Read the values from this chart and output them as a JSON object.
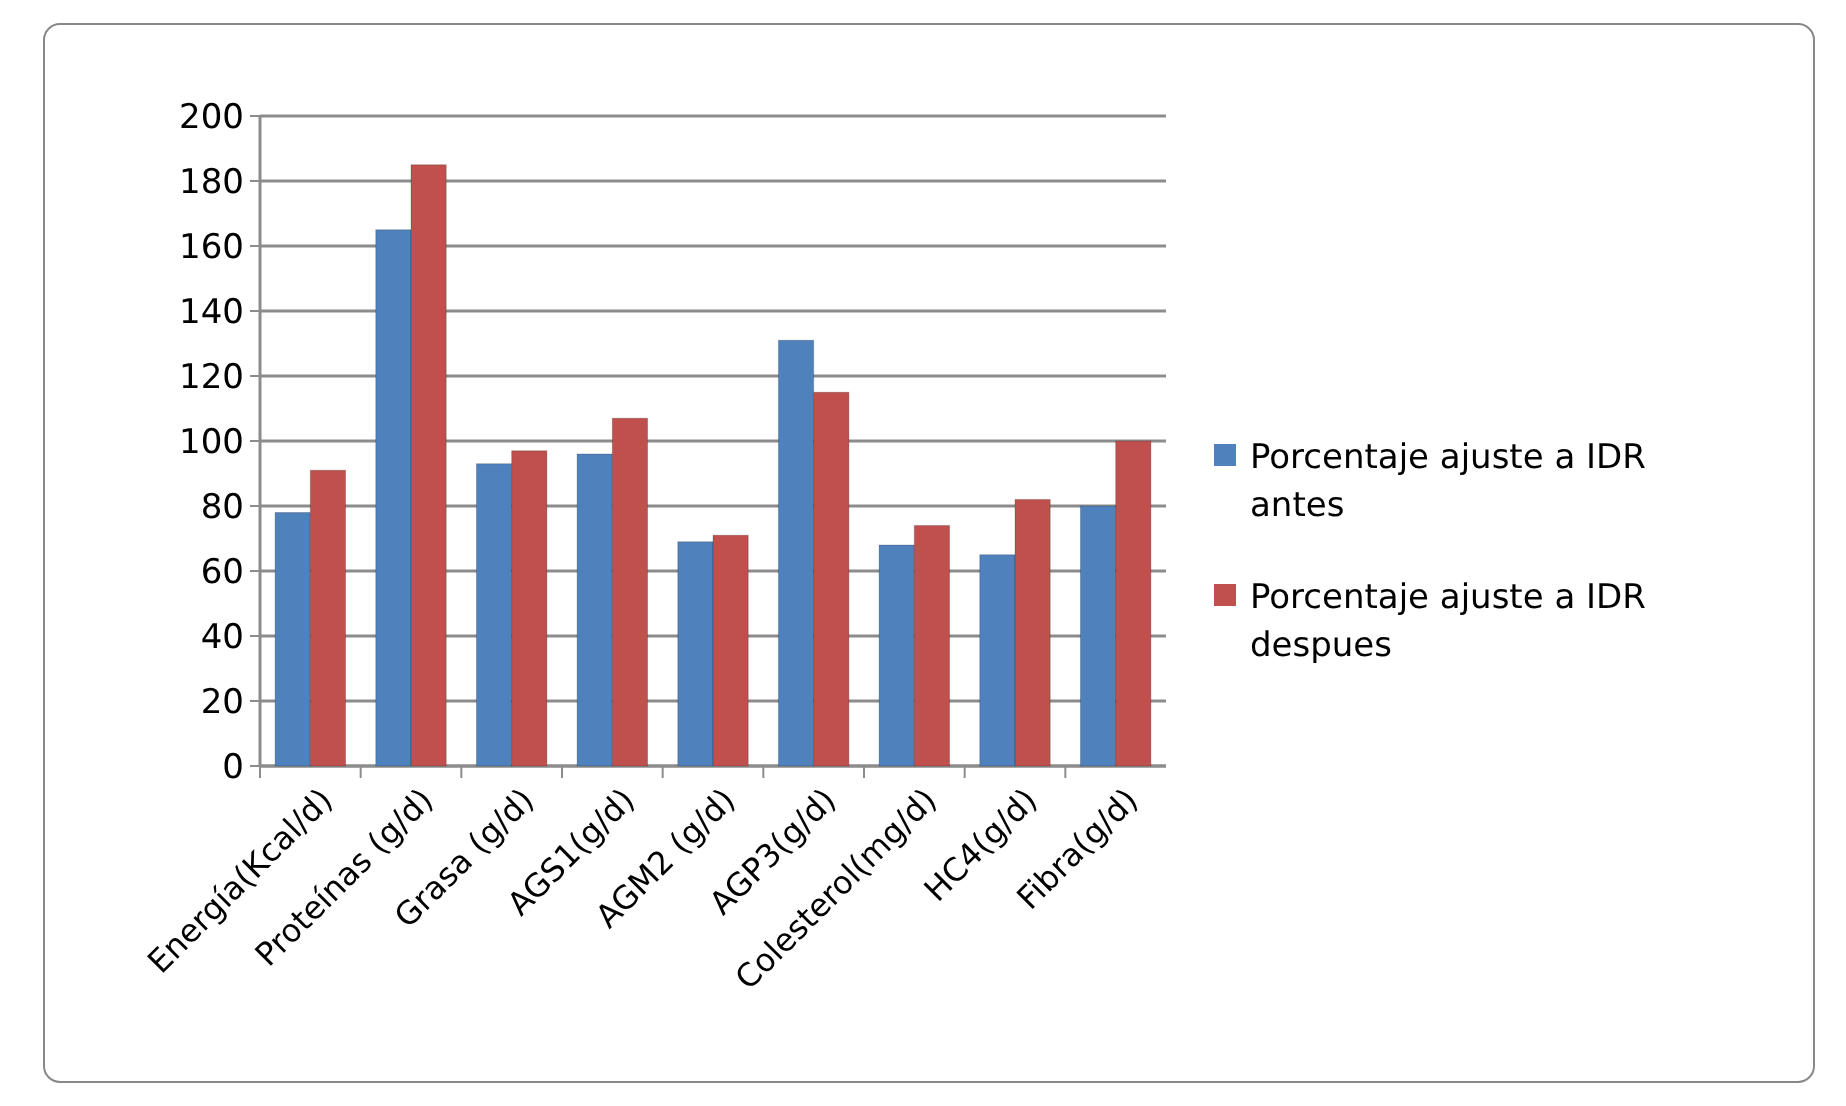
{
  "chart_data": {
    "type": "bar",
    "categories": [
      "Energía(Kcal/d)",
      "Proteínas (g/d)",
      "Grasa (g/d)",
      "AGS1(g/d)",
      "AGM2 (g/d)",
      "AGP3(g/d)",
      "Colesterol(mg/d)",
      "HC4(g/d)",
      "Fibra(g/d)"
    ],
    "series": [
      {
        "name": "Porcentaje ajuste a IDR antes",
        "color": "#4f81bd",
        "values": [
          78,
          165,
          93,
          96,
          69,
          131,
          68,
          65,
          80
        ]
      },
      {
        "name": "Porcentaje ajuste a IDR despues",
        "color": "#c0504d",
        "values": [
          91,
          185,
          97,
          107,
          71,
          115,
          74,
          82,
          100
        ]
      }
    ],
    "ylim": [
      0,
      200
    ],
    "yticks": [
      0,
      20,
      40,
      60,
      80,
      100,
      120,
      140,
      160,
      180,
      200
    ],
    "grid": "y",
    "legend": "right"
  }
}
